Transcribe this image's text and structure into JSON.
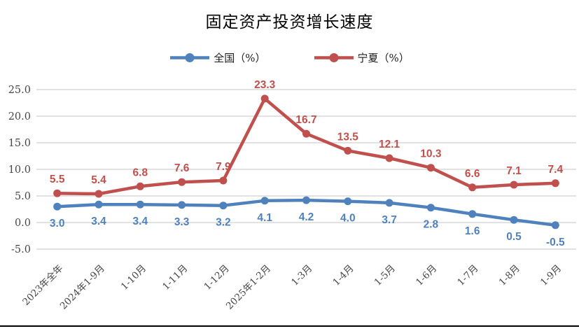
{
  "title": "固定资产投资增长速度",
  "colors": {
    "national_blue": "#4F81BD",
    "ningxia_red": "#C0504D",
    "grid": "#D9D9D9",
    "axis_label": "#474747",
    "bottom_rule": "#000000"
  },
  "chart_data": {
    "type": "line",
    "title": "固定资产投资增长速度",
    "categories": [
      "2023年全年",
      "2024年1-9月",
      "1-10月",
      "1-11月",
      "1-12月",
      "2025年1-2月",
      "1-3月",
      "1-4月",
      "1-5月",
      "1-6月",
      "1-7月",
      "1-8月",
      "1-9月"
    ],
    "series": [
      {
        "name": "全国（%）",
        "color": "#4F81BD",
        "label_position": "below",
        "values": [
          3.0,
          3.4,
          3.4,
          3.3,
          3.2,
          4.1,
          4.2,
          4.0,
          3.7,
          2.8,
          1.6,
          0.5,
          -0.5
        ]
      },
      {
        "name": "宁夏（%）",
        "color": "#C0504D",
        "label_position": "above",
        "values": [
          5.5,
          5.4,
          6.8,
          7.6,
          7.9,
          23.3,
          16.7,
          13.5,
          12.1,
          10.3,
          6.6,
          7.1,
          7.4
        ]
      }
    ],
    "ylim": [
      -5,
      25
    ],
    "ytick_step": 5,
    "yticks": [
      "25.0",
      "20.0",
      "15.0",
      "10.0",
      "5.0",
      "0.0",
      "-5.0"
    ],
    "grid": true,
    "legend_position": "top",
    "data_labels": true
  }
}
